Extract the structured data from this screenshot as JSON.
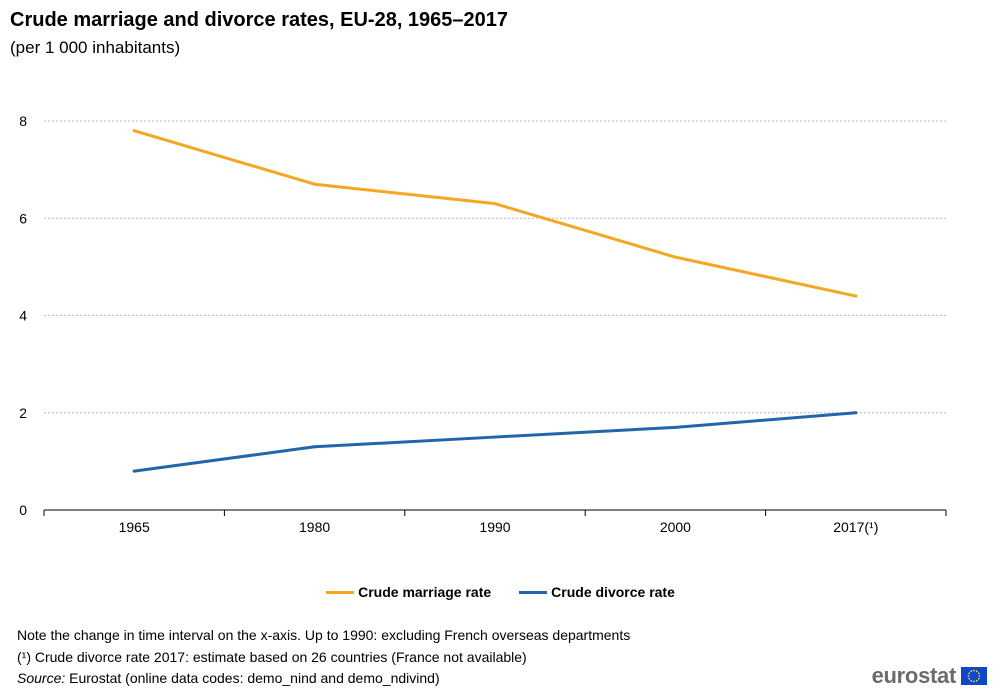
{
  "title": "Crude marriage and divorce rates, EU-28, 1965–2017",
  "subtitle": "(per 1 000 inhabitants)",
  "colors": {
    "marriage": "#f5a623",
    "divorce": "#2266aa",
    "grid": "#b9b9b9",
    "axis": "#000000",
    "flag_blue": "#0e47cb",
    "flag_stars": "#ffdd00"
  },
  "chart_data": {
    "type": "line",
    "categories": [
      "1965",
      "1980",
      "1990",
      "2000",
      "2017(¹)"
    ],
    "series": [
      {
        "name": "Crude marriage rate",
        "values": [
          7.8,
          6.7,
          6.3,
          5.2,
          4.4
        ]
      },
      {
        "name": "Crude divorce rate",
        "values": [
          0.8,
          1.3,
          1.5,
          1.7,
          2.0
        ]
      }
    ],
    "yticks": [
      0,
      2,
      4,
      6,
      8
    ],
    "ylim": [
      0,
      8
    ],
    "grid": true,
    "legend_position": "bottom"
  },
  "notes": {
    "line1": "Note the change in time interval on the x-axis. Up to 1990: excluding French overseas departments",
    "line2": "(¹) Crude divorce rate 2017: estimate based on 26 countries (France not available)",
    "source_label": "Source:",
    "source_text": " Eurostat (online data codes: demo_nind and demo_ndivind)"
  },
  "logo": {
    "text": "eurostat",
    "icon": "eu-flag-icon"
  }
}
